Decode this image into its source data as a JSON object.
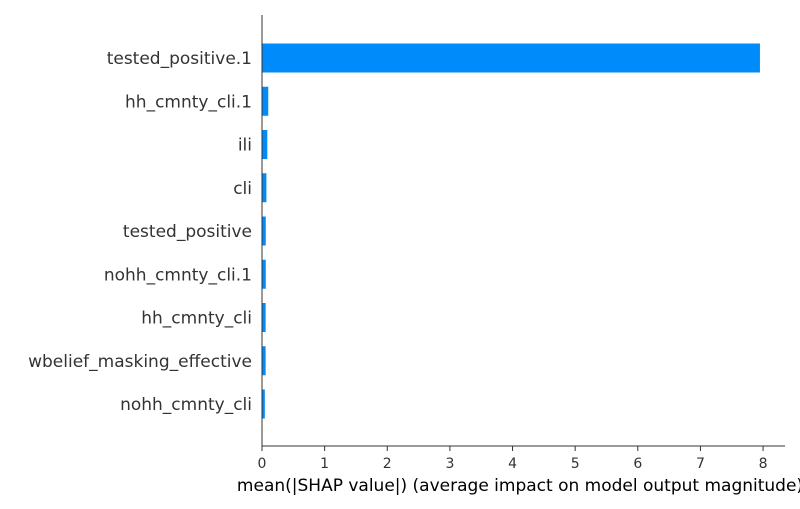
{
  "chart_data": {
    "type": "bar",
    "orientation": "horizontal",
    "categories": [
      "tested_positive.1",
      "hh_cmnty_cli.1",
      "ili",
      "cli",
      "tested_positive",
      "nohh_cmnty_cli.1",
      "hh_cmnty_cli",
      "wbelief_masking_effective",
      "nohh_cmnty_cli"
    ],
    "values": [
      7.95,
      0.1,
      0.085,
      0.07,
      0.06,
      0.06,
      0.058,
      0.058,
      0.045
    ],
    "xlabel": "mean(|SHAP value|) (average impact on model output magnitude)",
    "ylabel": "",
    "xlim": [
      0,
      8.35
    ],
    "xticks": [
      "0",
      "1",
      "2",
      "3",
      "4",
      "5",
      "6",
      "7",
      "8"
    ],
    "grid": false,
    "bar_color": "#008bfb"
  }
}
